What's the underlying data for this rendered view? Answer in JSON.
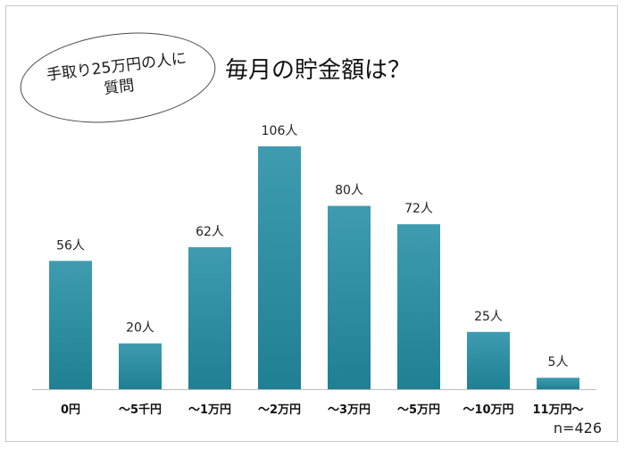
{
  "header": {
    "bubble_line1": "手取り25万円の人に",
    "bubble_line2": "質問",
    "title": "毎月の貯金額は？"
  },
  "footer": {
    "sample_size": "n=426"
  },
  "chart_data": {
    "type": "bar",
    "title": "毎月の貯金額は？",
    "categories": [
      "0円",
      "～5千円",
      "～1万円",
      "～2万円",
      "～3万円",
      "～5万円",
      "～10万円",
      "11万円～"
    ],
    "values": [
      56,
      20,
      62,
      106,
      80,
      72,
      25,
      5
    ],
    "data_labels": [
      "56人",
      "20人",
      "62人",
      "106人",
      "80人",
      "72人",
      "25人",
      "5人"
    ],
    "unit": "人",
    "xlabel": "",
    "ylabel": "",
    "ylim": [
      0,
      120
    ],
    "grid": false,
    "legend": "none",
    "colors": {
      "bar_top": "#3f9cb0",
      "bar_bottom": "#1f7f93",
      "axis": "#bdbdbd"
    }
  }
}
